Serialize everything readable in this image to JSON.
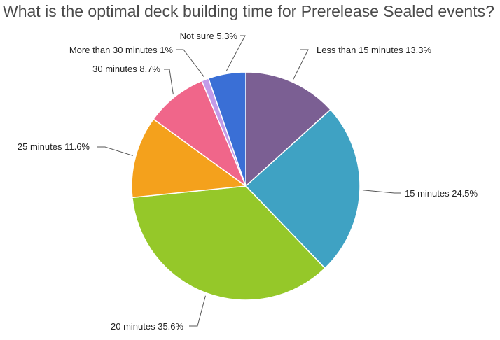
{
  "chart_data": {
    "type": "pie",
    "title": "What is the optimal deck building time for Prerelease Sealed events?",
    "slices": [
      {
        "label": "Less than 15 minutes",
        "value": 13.3,
        "value_label": "13.3%",
        "color": "#7b5f93"
      },
      {
        "label": "15 minutes",
        "value": 24.5,
        "value_label": "24.5%",
        "color": "#3fa2c3"
      },
      {
        "label": "20 minutes",
        "value": 35.6,
        "value_label": "35.6%",
        "color": "#95c829"
      },
      {
        "label": "25 minutes",
        "value": 11.6,
        "value_label": "11.6%",
        "color": "#f4a11c"
      },
      {
        "label": "30 minutes",
        "value": 8.7,
        "value_label": "8.7%",
        "color": "#f0668a"
      },
      {
        "label": "More than 30 minutes",
        "value": 1,
        "value_label": "1%",
        "color": "#c39be8"
      },
      {
        "label": "Not sure",
        "value": 5.3,
        "value_label": "5.3%",
        "color": "#3a6fd6"
      }
    ],
    "start": "top",
    "direction": "clockwise",
    "legend": "none"
  }
}
